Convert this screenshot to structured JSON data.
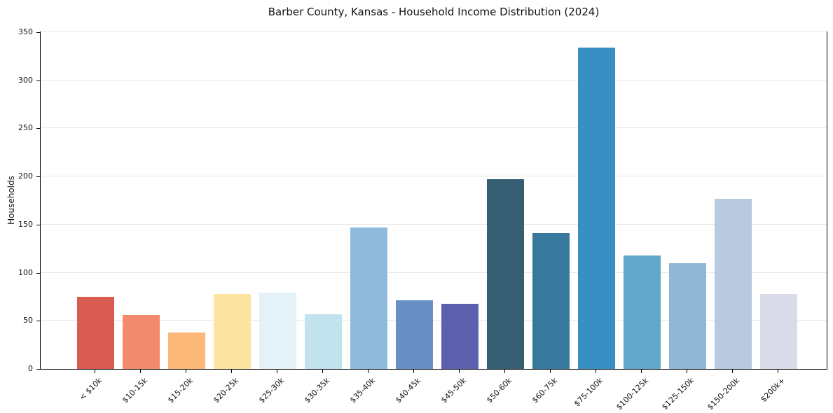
{
  "chart_data": {
    "type": "bar",
    "title": "Barber County, Kansas - Household Income Distribution (2024)",
    "xlabel": "",
    "ylabel": "Households",
    "ylim": [
      0,
      350
    ],
    "yticks": [
      0,
      50,
      100,
      150,
      200,
      250,
      300,
      350
    ],
    "grid": "horizontal gridlines only",
    "legend": "none",
    "background": "#ffffff",
    "gridline_color": "#e7e7e7",
    "axis_color": "#000000",
    "categories": [
      "< $10k",
      "$10-15k",
      "$15-20k",
      "$20-25k",
      "$25-30k",
      "$30-35k",
      "$35-40k",
      "$40-45k",
      "$45-50k",
      "$50-60k",
      "$60-75k",
      "$75-100k",
      "$100-125k",
      "$125-150k",
      "$150-200k",
      "$200k+"
    ],
    "values": [
      75,
      56,
      38,
      78,
      79,
      57,
      147,
      71,
      68,
      197,
      141,
      334,
      118,
      110,
      177,
      78
    ],
    "bar_colors": [
      "#d85c52",
      "#f28a6e",
      "#fbb878",
      "#fde4a1",
      "#e4f1f7",
      "#c2e2ee",
      "#90badc",
      "#6890c5",
      "#5c60ae",
      "#365e73",
      "#37799c",
      "#398fc3",
      "#61a7c9",
      "#90b6d6",
      "#b9c9e0",
      "#d9dbe8"
    ]
  }
}
